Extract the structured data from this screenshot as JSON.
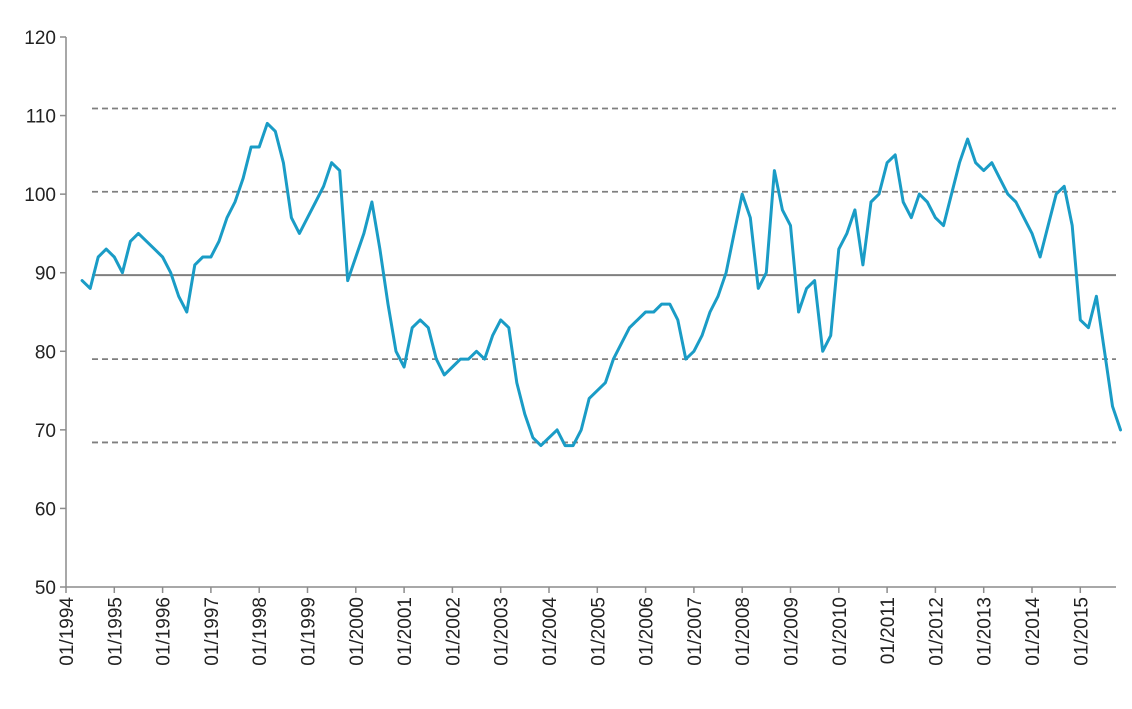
{
  "chart_data": {
    "type": "line",
    "title": "",
    "xlabel": "",
    "ylabel": "",
    "ylim": [
      50,
      120
    ],
    "y_ticks": [
      "50",
      "60",
      "70",
      "80",
      "90",
      "100",
      "110",
      "120"
    ],
    "x_ticks": [
      "01/1994",
      "01/1995",
      "01/1996",
      "01/1997",
      "01/1998",
      "01/1999",
      "01/2000",
      "01/2001",
      "01/2002",
      "01/2003",
      "01/2004",
      "01/2005",
      "01/2006",
      "01/2007",
      "01/2008",
      "01/2009",
      "01/2010",
      "01/2011",
      "01/2012",
      "01/2013",
      "01/2014",
      "01/2015"
    ],
    "grid": false,
    "legend": "none",
    "colors": {
      "series": "#1a9cc6",
      "mean_line": "#7f7f7f",
      "band_lines": "#7f7f7f",
      "axis": "#8c8c8c"
    },
    "reference_lines": [
      {
        "y": 89.7,
        "style": "solid"
      },
      {
        "y": 100.3,
        "style": "dashed"
      },
      {
        "y": 79.0,
        "style": "dashed"
      },
      {
        "y": 110.9,
        "style": "dashed"
      },
      {
        "y": 68.4,
        "style": "dashed"
      }
    ],
    "series": [
      {
        "x": [
          "1994-05",
          "1994-07",
          "1994-09",
          "1994-11",
          "1995-01",
          "1995-03",
          "1995-05",
          "1995-07",
          "1995-09",
          "1995-11",
          "1996-01",
          "1996-03",
          "1996-05",
          "1996-07",
          "1996-09",
          "1996-11",
          "1997-01",
          "1997-03",
          "1997-05",
          "1997-07",
          "1997-09",
          "1997-11",
          "1998-01",
          "1998-03",
          "1998-05",
          "1998-07",
          "1998-09",
          "1998-11",
          "1999-01",
          "1999-03",
          "1999-05",
          "1999-07",
          "1999-09",
          "1999-11",
          "2000-01",
          "2000-03",
          "2000-05",
          "2000-07",
          "2000-09",
          "2000-11",
          "2001-01",
          "2001-03",
          "2001-05",
          "2001-07",
          "2001-09",
          "2001-11",
          "2002-01",
          "2002-03",
          "2002-05",
          "2002-07",
          "2002-09",
          "2002-11",
          "2003-01",
          "2003-03",
          "2003-05",
          "2003-07",
          "2003-09",
          "2003-11",
          "2004-01",
          "2004-03",
          "2004-05",
          "2004-07",
          "2004-09",
          "2004-11",
          "2005-01",
          "2005-03",
          "2005-05",
          "2005-07",
          "2005-09",
          "2005-11",
          "2006-01",
          "2006-03",
          "2006-05",
          "2006-07",
          "2006-09",
          "2006-11",
          "2007-01",
          "2007-03",
          "2007-05",
          "2007-07",
          "2007-09",
          "2007-11",
          "2008-01",
          "2008-03",
          "2008-05",
          "2008-07",
          "2008-09",
          "2008-11",
          "2009-01",
          "2009-03",
          "2009-05",
          "2009-07",
          "2009-09",
          "2009-11",
          "2010-01",
          "2010-03",
          "2010-05",
          "2010-07",
          "2010-09",
          "2010-11",
          "2011-01",
          "2011-03",
          "2011-05",
          "2011-07",
          "2011-09",
          "2011-11",
          "2012-01",
          "2012-03",
          "2012-05",
          "2012-07",
          "2012-09",
          "2012-11",
          "2013-01",
          "2013-03",
          "2013-05",
          "2013-07",
          "2013-09",
          "2013-11",
          "2014-01",
          "2014-03",
          "2014-05",
          "2014-07",
          "2014-09",
          "2014-11",
          "2015-01",
          "2015-03",
          "2015-05",
          "2015-07",
          "2015-09",
          "2015-11"
        ],
        "y": [
          89,
          88,
          92,
          93,
          92,
          90,
          94,
          95,
          94,
          93,
          92,
          90,
          87,
          85,
          91,
          92,
          92,
          94,
          97,
          99,
          102,
          106,
          106,
          109,
          108,
          104,
          97,
          95,
          97,
          99,
          101,
          104,
          103,
          89,
          92,
          95,
          99,
          93,
          86,
          80,
          78,
          83,
          84,
          83,
          79,
          77,
          78,
          79,
          79,
          80,
          79,
          82,
          84,
          83,
          76,
          72,
          69,
          68,
          69,
          70,
          68,
          68,
          70,
          74,
          75,
          76,
          79,
          81,
          83,
          84,
          85,
          85,
          86,
          86,
          84,
          79,
          80,
          82,
          85,
          87,
          90,
          95,
          100,
          97,
          88,
          90,
          103,
          98,
          96,
          85,
          88,
          89,
          80,
          82,
          93,
          95,
          98,
          91,
          99,
          100,
          104,
          105,
          99,
          97,
          100,
          99,
          97,
          96,
          100,
          104,
          107,
          104,
          103,
          104,
          102,
          100,
          99,
          97,
          95,
          92,
          96,
          100,
          101,
          96,
          84,
          83,
          87,
          80,
          73,
          70
        ]
      }
    ]
  }
}
